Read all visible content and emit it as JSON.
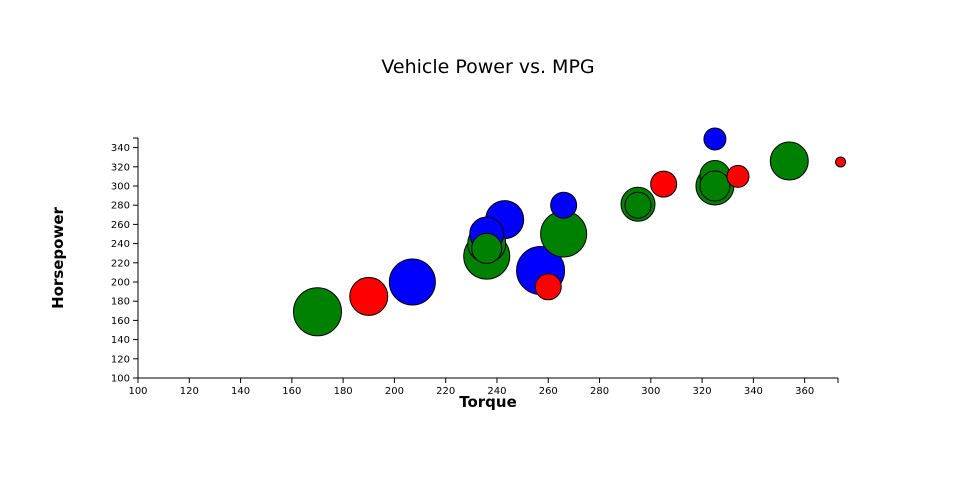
{
  "chart_data": {
    "type": "scatter",
    "title": "Vehicle Power vs. MPG",
    "xlabel": "Torque",
    "ylabel": "Horsepower",
    "xlim": [
      100,
      373
    ],
    "ylim": [
      100,
      350
    ],
    "xticks": [
      100,
      120,
      140,
      160,
      180,
      200,
      220,
      240,
      260,
      280,
      300,
      320,
      340,
      360
    ],
    "yticks": [
      100,
      120,
      140,
      160,
      180,
      200,
      220,
      240,
      260,
      280,
      300,
      320,
      340
    ],
    "grid": false,
    "colors": {
      "blue": "#0000ff",
      "green": "#008000",
      "red": "#ff0000"
    },
    "points": [
      {
        "x": 170,
        "y": 169,
        "r": 24,
        "color": "#008000"
      },
      {
        "x": 190,
        "y": 185,
        "r": 19,
        "color": "#ff0000"
      },
      {
        "x": 207,
        "y": 200,
        "r": 23,
        "color": "#0000ff"
      },
      {
        "x": 236,
        "y": 250,
        "r": 17,
        "color": "#0000ff"
      },
      {
        "x": 243,
        "y": 265,
        "r": 19,
        "color": "#0000ff"
      },
      {
        "x": 236,
        "y": 227,
        "r": 23,
        "color": "#008000"
      },
      {
        "x": 236,
        "y": 240,
        "r": 19,
        "color": "#008000"
      },
      {
        "x": 236,
        "y": 235,
        "r": 15,
        "color": "#008000"
      },
      {
        "x": 257,
        "y": 212,
        "r": 24,
        "color": "#0000ff"
      },
      {
        "x": 260,
        "y": 195,
        "r": 13,
        "color": "#ff0000"
      },
      {
        "x": 266,
        "y": 280,
        "r": 13,
        "color": "#0000ff"
      },
      {
        "x": 266,
        "y": 250,
        "r": 23,
        "color": "#008000"
      },
      {
        "x": 295,
        "y": 281,
        "r": 17,
        "color": "#008000"
      },
      {
        "x": 295,
        "y": 280,
        "r": 13,
        "color": "#008000"
      },
      {
        "x": 305,
        "y": 302,
        "r": 13,
        "color": "#ff0000"
      },
      {
        "x": 325,
        "y": 349,
        "r": 11,
        "color": "#0000ff"
      },
      {
        "x": 325,
        "y": 311,
        "r": 15,
        "color": "#008000"
      },
      {
        "x": 325,
        "y": 300,
        "r": 19,
        "color": "#008000"
      },
      {
        "x": 325,
        "y": 300,
        "r": 15,
        "color": "#008000"
      },
      {
        "x": 334,
        "y": 310,
        "r": 11,
        "color": "#ff0000"
      },
      {
        "x": 354,
        "y": 326,
        "r": 19,
        "color": "#008000"
      },
      {
        "x": 374,
        "y": 325,
        "r": 5,
        "color": "#ff0000"
      }
    ]
  }
}
